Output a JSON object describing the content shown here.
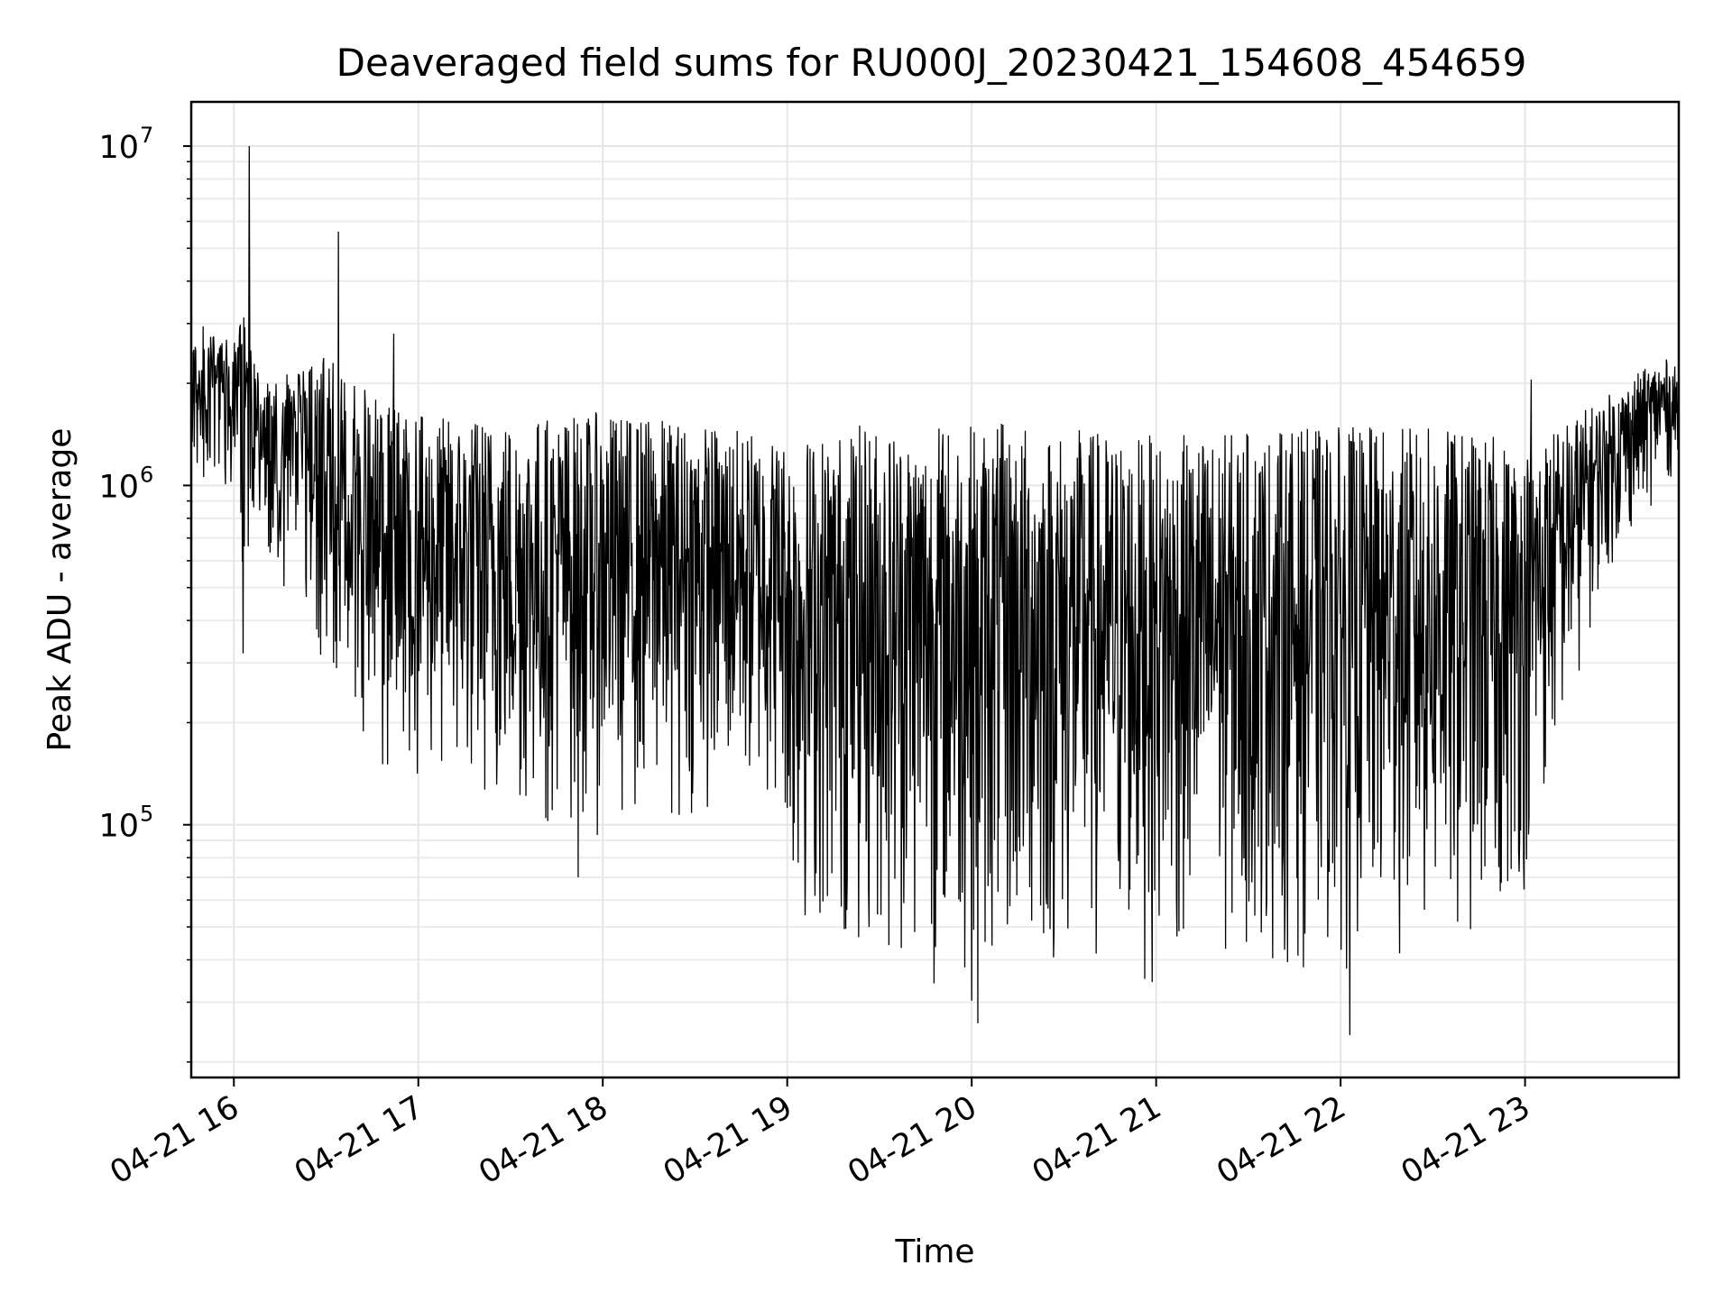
{
  "chart_data": {
    "type": "line",
    "title": "Deaveraged field sums for RU000J_20230421_154608_454659",
    "xlabel": "Time",
    "ylabel": "Peak ADU - average",
    "xscale": "time",
    "yscale": "log",
    "xlim": [
      "2023-04-21T15:46:08",
      "2023-04-21T23:50:00"
    ],
    "ylim": [
      18000,
      13500000
    ],
    "x_ticks": [
      "04-21 16",
      "04-21 17",
      "04-21 18",
      "04-21 19",
      "04-21 20",
      "04-21 21",
      "04-21 22",
      "04-21 23"
    ],
    "y_ticks": [
      {
        "base": "10",
        "exp": "5",
        "value": 100000
      },
      {
        "base": "10",
        "exp": "6",
        "value": 1000000
      },
      {
        "base": "10",
        "exp": "7",
        "value": 10000000
      }
    ],
    "grid": "major and minor",
    "line_color": "#000000",
    "series": [
      {
        "x_start": "2023-04-21T15:46:08",
        "x_end": "2023-04-21T23:50:00",
        "envelope_x": [
          "15:46",
          "15:50",
          "16:00",
          "16:03",
          "16:05",
          "16:10",
          "16:20",
          "16:30",
          "16:40",
          "16:50",
          "17:00",
          "17:30",
          "18:00",
          "18:30",
          "18:59",
          "19:01",
          "19:30",
          "20:00",
          "20:30",
          "21:00",
          "21:30",
          "22:00",
          "22:30",
          "22:50",
          "23:00",
          "23:15",
          "23:25",
          "23:35",
          "23:45",
          "23:50"
        ],
        "envelope_high": [
          2500000,
          3000000,
          2600000,
          3400000,
          2800000,
          2000000,
          2200000,
          2400000,
          2000000,
          1700000,
          1600000,
          1600000,
          1650000,
          1550000,
          1400000,
          1400000,
          1550000,
          1550000,
          1500000,
          1400000,
          1450000,
          1500000,
          1500000,
          1400000,
          1300000,
          1600000,
          1800000,
          2100000,
          2400000,
          2200000
        ],
        "envelope_low": [
          900000,
          900000,
          1000000,
          320000,
          700000,
          600000,
          400000,
          250000,
          180000,
          140000,
          120000,
          90000,
          90000,
          100000,
          100000,
          45000,
          35000,
          30000,
          30000,
          32000,
          35000,
          35000,
          35000,
          40000,
          60000,
          200000,
          500000,
          700000,
          1000000,
          1000000
        ],
        "spikes": [
          {
            "x": "16:05",
            "y": 10000000
          },
          {
            "x": "16:34",
            "y": 5600000
          },
          {
            "x": "16:52",
            "y": 2800000
          },
          {
            "x": "16:03",
            "y": 320000
          },
          {
            "x": "17:52",
            "y": 70000
          },
          {
            "x": "20:02",
            "y": 26000
          },
          {
            "x": "22:03",
            "y": 24000
          },
          {
            "x": "23:02",
            "y": 2050000
          }
        ]
      }
    ]
  }
}
